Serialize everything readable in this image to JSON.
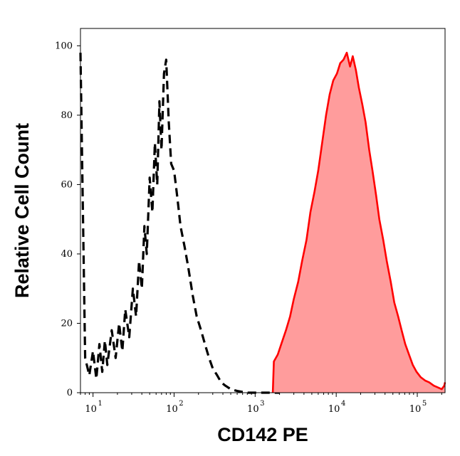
{
  "chart_data": {
    "type": "area",
    "xlabel": "CD142 PE",
    "ylabel": "Relative Cell Count",
    "x_scale": "log",
    "xlim": [
      7,
      220000
    ],
    "ylim": [
      0,
      105
    ],
    "x_ticks": [
      {
        "value": 10,
        "base": "10",
        "exp": "1"
      },
      {
        "value": 100,
        "base": "10",
        "exp": "2"
      },
      {
        "value": 1000,
        "base": "10",
        "exp": "3"
      },
      {
        "value": 10000,
        "base": "10",
        "exp": "4"
      },
      {
        "value": 100000,
        "base": "10",
        "exp": "5"
      }
    ],
    "y_ticks": [
      {
        "value": 0,
        "label": "0"
      },
      {
        "value": 20,
        "label": "20"
      },
      {
        "value": 40,
        "label": "40"
      },
      {
        "value": 60,
        "label": "60"
      },
      {
        "value": 80,
        "label": "80"
      },
      {
        "value": 100,
        "label": "100"
      }
    ],
    "grid": false,
    "legend": "none",
    "series": [
      {
        "style": "dashed",
        "color": "#000000",
        "fill": "none",
        "x": [
          7,
          8,
          9,
          10,
          11,
          12,
          13,
          14,
          15,
          17,
          19,
          21,
          23,
          25,
          28,
          31,
          34,
          37,
          40,
          43,
          46,
          50,
          54,
          58,
          62,
          66,
          70,
          75,
          80,
          86,
          92,
          100,
          110,
          120,
          135,
          150,
          170,
          190,
          215,
          240,
          270,
          300,
          340,
          380,
          430,
          500,
          600,
          800,
          1000,
          2000
        ],
        "values": [
          98,
          10,
          5,
          12,
          4,
          14,
          6,
          15,
          8,
          18,
          10,
          20,
          12,
          24,
          16,
          30,
          22,
          38,
          30,
          48,
          40,
          62,
          52,
          72,
          60,
          84,
          70,
          92,
          96,
          78,
          66,
          64,
          56,
          48,
          42,
          36,
          28,
          22,
          18,
          14,
          10,
          7,
          5,
          3,
          2,
          1,
          0.5,
          0,
          0,
          0
        ]
      },
      {
        "style": "solid",
        "color": "#ff0000",
        "fill": "#ff9c9c",
        "x": [
          1650,
          1700,
          1900,
          2100,
          2400,
          2700,
          3000,
          3400,
          3800,
          4300,
          4800,
          5400,
          6000,
          6700,
          7500,
          8300,
          9200,
          10200,
          11200,
          12300,
          13500,
          14800,
          16000,
          17500,
          19000,
          21000,
          23000,
          25500,
          28000,
          31000,
          34000,
          38000,
          42000,
          47000,
          52000,
          58000,
          64000,
          71000,
          79000,
          88000,
          98000,
          110000,
          125000,
          140000,
          160000,
          180000,
          200000,
          215000,
          220000
        ],
        "values": [
          0,
          9,
          11,
          14,
          18,
          22,
          27,
          32,
          38,
          44,
          52,
          58,
          64,
          72,
          80,
          86,
          90,
          92,
          95,
          96,
          98,
          94,
          97,
          93,
          88,
          83,
          78,
          70,
          64,
          57,
          50,
          44,
          38,
          32,
          26,
          22,
          18,
          14,
          11,
          8,
          6,
          4.5,
          3.5,
          3,
          2,
          1.5,
          1,
          2,
          3
        ]
      }
    ]
  }
}
